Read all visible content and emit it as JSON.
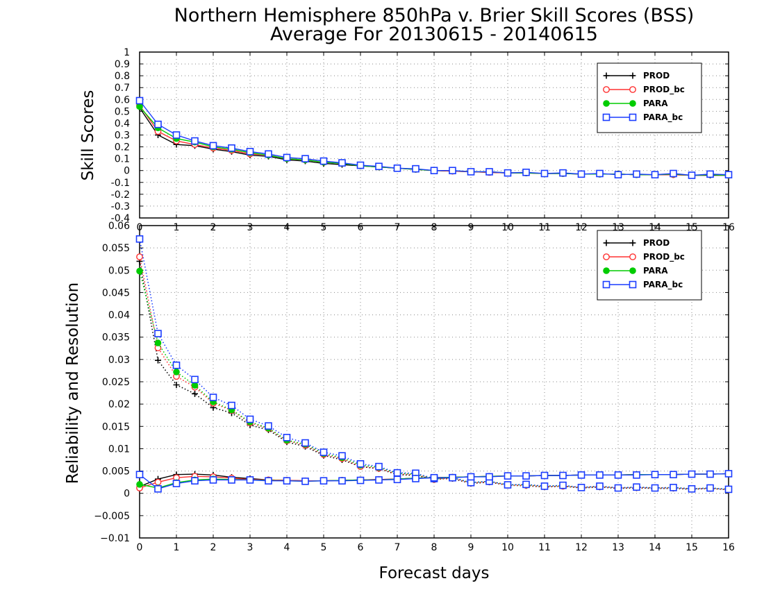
{
  "title_line1": "Northern Hemisphere 850hPa v. Brier Skill Scores (BSS)",
  "title_line2": "Average For 20130615 - 20140615",
  "chart_data": [
    {
      "type": "line",
      "ylabel": "Skill Scores",
      "xlim": [
        0,
        16
      ],
      "ylim": [
        -0.4,
        1
      ],
      "yticks": [
        "-0.4",
        "-0.3",
        "-0.2",
        "-0.1",
        "0",
        "0.1",
        "0.2",
        "0.3",
        "0.4",
        "0.5",
        "0.6",
        "0.7",
        "0.8",
        "0.9",
        "1"
      ],
      "xticks": [
        "0",
        "1",
        "2",
        "3",
        "4",
        "5",
        "6",
        "7",
        "8",
        "9",
        "10",
        "11",
        "12",
        "13",
        "14",
        "15",
        "16"
      ],
      "grid": true,
      "legend_position": "top-right",
      "x": [
        0,
        0.5,
        1,
        1.5,
        2,
        2.5,
        3,
        3.5,
        4,
        4.5,
        5,
        5.5,
        6,
        6.5,
        7,
        7.5,
        8,
        8.5,
        9,
        9.5,
        10,
        10.5,
        11,
        11.5,
        12,
        12.5,
        13,
        13.5,
        14,
        14.5,
        15,
        15.5,
        16
      ],
      "series": [
        {
          "name": "PROD",
          "color": "#000000",
          "marker": "plus",
          "values": [
            0.53,
            0.3,
            0.22,
            0.21,
            0.18,
            0.16,
            0.13,
            0.12,
            0.09,
            0.08,
            0.06,
            0.05,
            0.04,
            0.03,
            0.02,
            0.01,
            0.0,
            -0.005,
            -0.01,
            -0.015,
            -0.02,
            -0.02,
            -0.025,
            -0.025,
            -0.03,
            -0.03,
            -0.03,
            -0.035,
            -0.035,
            -0.035,
            -0.04,
            -0.04,
            -0.04
          ]
        },
        {
          "name": "PROD_bc",
          "color": "#ff3030",
          "marker": "open-circle",
          "values": [
            0.55,
            0.33,
            0.25,
            0.22,
            0.19,
            0.17,
            0.14,
            0.13,
            0.1,
            0.09,
            0.07,
            0.06,
            0.04,
            0.03,
            0.02,
            0.01,
            0.0,
            -0.005,
            -0.01,
            -0.015,
            -0.02,
            -0.02,
            -0.025,
            -0.025,
            -0.03,
            -0.03,
            -0.03,
            -0.035,
            -0.035,
            -0.035,
            -0.04,
            -0.035,
            -0.04
          ]
        },
        {
          "name": "PARA",
          "color": "#00cc00",
          "marker": "filled-circle",
          "values": [
            0.54,
            0.36,
            0.27,
            0.24,
            0.2,
            0.18,
            0.15,
            0.13,
            0.1,
            0.09,
            0.07,
            0.06,
            0.04,
            0.03,
            0.02,
            0.01,
            0.0,
            0.0,
            -0.01,
            -0.01,
            -0.02,
            -0.02,
            -0.025,
            -0.025,
            -0.03,
            -0.03,
            -0.03,
            -0.035,
            -0.035,
            -0.03,
            -0.04,
            -0.035,
            -0.04
          ]
        },
        {
          "name": "PARA_bc",
          "color": "#1a3cff",
          "marker": "open-square",
          "values": [
            0.59,
            0.39,
            0.3,
            0.25,
            0.21,
            0.19,
            0.16,
            0.14,
            0.11,
            0.1,
            0.08,
            0.065,
            0.045,
            0.035,
            0.02,
            0.015,
            0.0,
            0.0,
            -0.01,
            -0.01,
            -0.02,
            -0.015,
            -0.025,
            -0.02,
            -0.03,
            -0.025,
            -0.035,
            -0.03,
            -0.035,
            -0.025,
            -0.04,
            -0.03,
            -0.035
          ]
        }
      ]
    },
    {
      "type": "line",
      "ylabel": "Reliability and Resolution",
      "xlabel": "Forecast days",
      "xlim": [
        0,
        16
      ],
      "ylim": [
        -0.01,
        0.06
      ],
      "yticks": [
        "−0.01",
        "−0.005",
        "0",
        "0.005",
        "0.01",
        "0.015",
        "0.02",
        "0.025",
        "0.03",
        "0.035",
        "0.04",
        "0.045",
        "0.05",
        "0.055",
        "0.06"
      ],
      "xticks": [
        "0",
        "1",
        "2",
        "3",
        "4",
        "5",
        "6",
        "7",
        "8",
        "9",
        "10",
        "11",
        "12",
        "13",
        "14",
        "15",
        "16"
      ],
      "grid": true,
      "legend_position": "top-right",
      "x": [
        0,
        0.5,
        1,
        1.5,
        2,
        2.5,
        3,
        3.5,
        4,
        4.5,
        5,
        5.5,
        6,
        6.5,
        7,
        7.5,
        8,
        8.5,
        9,
        9.5,
        10,
        10.5,
        11,
        11.5,
        12,
        12.5,
        13,
        13.5,
        14,
        14.5,
        15,
        15.5,
        16
      ],
      "series": [
        {
          "name": "PROD",
          "color": "#000000",
          "marker": "plus",
          "group": "resolution",
          "values": [
            0.052,
            0.0298,
            0.0243,
            0.0223,
            0.0192,
            0.018,
            0.0153,
            0.0142,
            0.0115,
            0.0105,
            0.0085,
            0.0075,
            0.006,
            0.0055,
            0.0042,
            0.004,
            0.0032,
            0.0033,
            0.0022,
            0.0025,
            0.0018,
            0.0017,
            0.0014,
            0.0016,
            0.0012,
            0.0014,
            0.0011,
            0.0012,
            0.0011,
            0.0011,
            0.0009,
            0.0011,
            0.0008
          ]
        },
        {
          "name": "PROD_bc",
          "color": "#ff3030",
          "marker": "open-circle",
          "group": "resolution",
          "values": [
            0.053,
            0.0326,
            0.0262,
            0.0238,
            0.0202,
            0.0186,
            0.0158,
            0.0145,
            0.0118,
            0.0108,
            0.0087,
            0.0078,
            0.006,
            0.0056,
            0.0043,
            0.0042,
            0.0031,
            0.0034,
            0.0023,
            0.0026,
            0.0018,
            0.0018,
            0.0015,
            0.0016,
            0.0013,
            0.0015,
            0.0012,
            0.0013,
            0.0012,
            0.0012,
            0.001,
            0.0011,
            0.0008
          ]
        },
        {
          "name": "PARA",
          "color": "#00cc00",
          "marker": "filled-circle",
          "group": "resolution",
          "values": [
            0.0498,
            0.0337,
            0.0272,
            0.0242,
            0.0205,
            0.0187,
            0.016,
            0.0146,
            0.0119,
            0.011,
            0.0089,
            0.008,
            0.0063,
            0.0058,
            0.0045,
            0.0043,
            0.0032,
            0.0035,
            0.0024,
            0.0027,
            0.0019,
            0.0019,
            0.0016,
            0.0017,
            0.0013,
            0.0016,
            0.0012,
            0.0014,
            0.0012,
            0.0013,
            0.001,
            0.0012,
            0.0009
          ]
        },
        {
          "name": "PARA_bc",
          "color": "#1a3cff",
          "marker": "open-square",
          "group": "resolution",
          "values": [
            0.057,
            0.0358,
            0.0287,
            0.0255,
            0.0215,
            0.0197,
            0.0166,
            0.0151,
            0.0125,
            0.0113,
            0.0092,
            0.0084,
            0.0066,
            0.006,
            0.0046,
            0.0045,
            0.0033,
            0.0035,
            0.0024,
            0.0027,
            0.0019,
            0.002,
            0.0016,
            0.0018,
            0.0013,
            0.0016,
            0.0012,
            0.0014,
            0.0012,
            0.0013,
            0.001,
            0.0012,
            0.0009
          ]
        },
        {
          "name": "PROD",
          "color": "#000000",
          "marker": "plus",
          "group": "reliability",
          "values": [
            0.0015,
            0.0032,
            0.0042,
            0.0043,
            0.0041,
            0.0036,
            0.0033,
            0.003,
            0.0029,
            0.0028,
            0.0028,
            0.0029,
            0.003,
            0.0031,
            0.0032,
            0.0034,
            0.0035,
            0.0036,
            0.0037,
            0.0038,
            0.0039,
            0.0039,
            0.004,
            0.004,
            0.0041,
            0.0041,
            0.0041,
            0.0042,
            0.0042,
            0.0042,
            0.0043,
            0.0043,
            0.0044
          ]
        },
        {
          "name": "PROD_bc",
          "color": "#ff3030",
          "marker": "open-circle",
          "group": "reliability",
          "values": [
            0.0012,
            0.0025,
            0.0035,
            0.0038,
            0.0037,
            0.0034,
            0.0031,
            0.003,
            0.0029,
            0.0028,
            0.0028,
            0.0029,
            0.003,
            0.0031,
            0.0032,
            0.0034,
            0.0035,
            0.0036,
            0.0037,
            0.0038,
            0.0039,
            0.0039,
            0.004,
            0.004,
            0.0041,
            0.0041,
            0.0041,
            0.0042,
            0.0042,
            0.0042,
            0.0043,
            0.0043,
            0.0044
          ]
        },
        {
          "name": "PARA",
          "color": "#00cc00",
          "marker": "filled-circle",
          "group": "reliability",
          "values": [
            0.002,
            0.0012,
            0.0024,
            0.003,
            0.0032,
            0.0031,
            0.003,
            0.0029,
            0.0028,
            0.0027,
            0.0028,
            0.0029,
            0.003,
            0.003,
            0.0032,
            0.0034,
            0.0035,
            0.0036,
            0.0037,
            0.0038,
            0.0039,
            0.0039,
            0.004,
            0.004,
            0.0041,
            0.0041,
            0.0041,
            0.0042,
            0.0042,
            0.0042,
            0.0043,
            0.0043,
            0.0044
          ]
        },
        {
          "name": "PARA_bc",
          "color": "#1a3cff",
          "marker": "open-square",
          "group": "reliability",
          "values": [
            0.0042,
            0.001,
            0.0022,
            0.0028,
            0.003,
            0.003,
            0.003,
            0.0028,
            0.0028,
            0.0027,
            0.0028,
            0.0028,
            0.0029,
            0.003,
            0.0031,
            0.0033,
            0.0035,
            0.0035,
            0.0037,
            0.0037,
            0.0039,
            0.0039,
            0.004,
            0.004,
            0.0041,
            0.0041,
            0.0041,
            0.0041,
            0.0042,
            0.0042,
            0.0043,
            0.0043,
            0.0044
          ]
        }
      ]
    }
  ]
}
